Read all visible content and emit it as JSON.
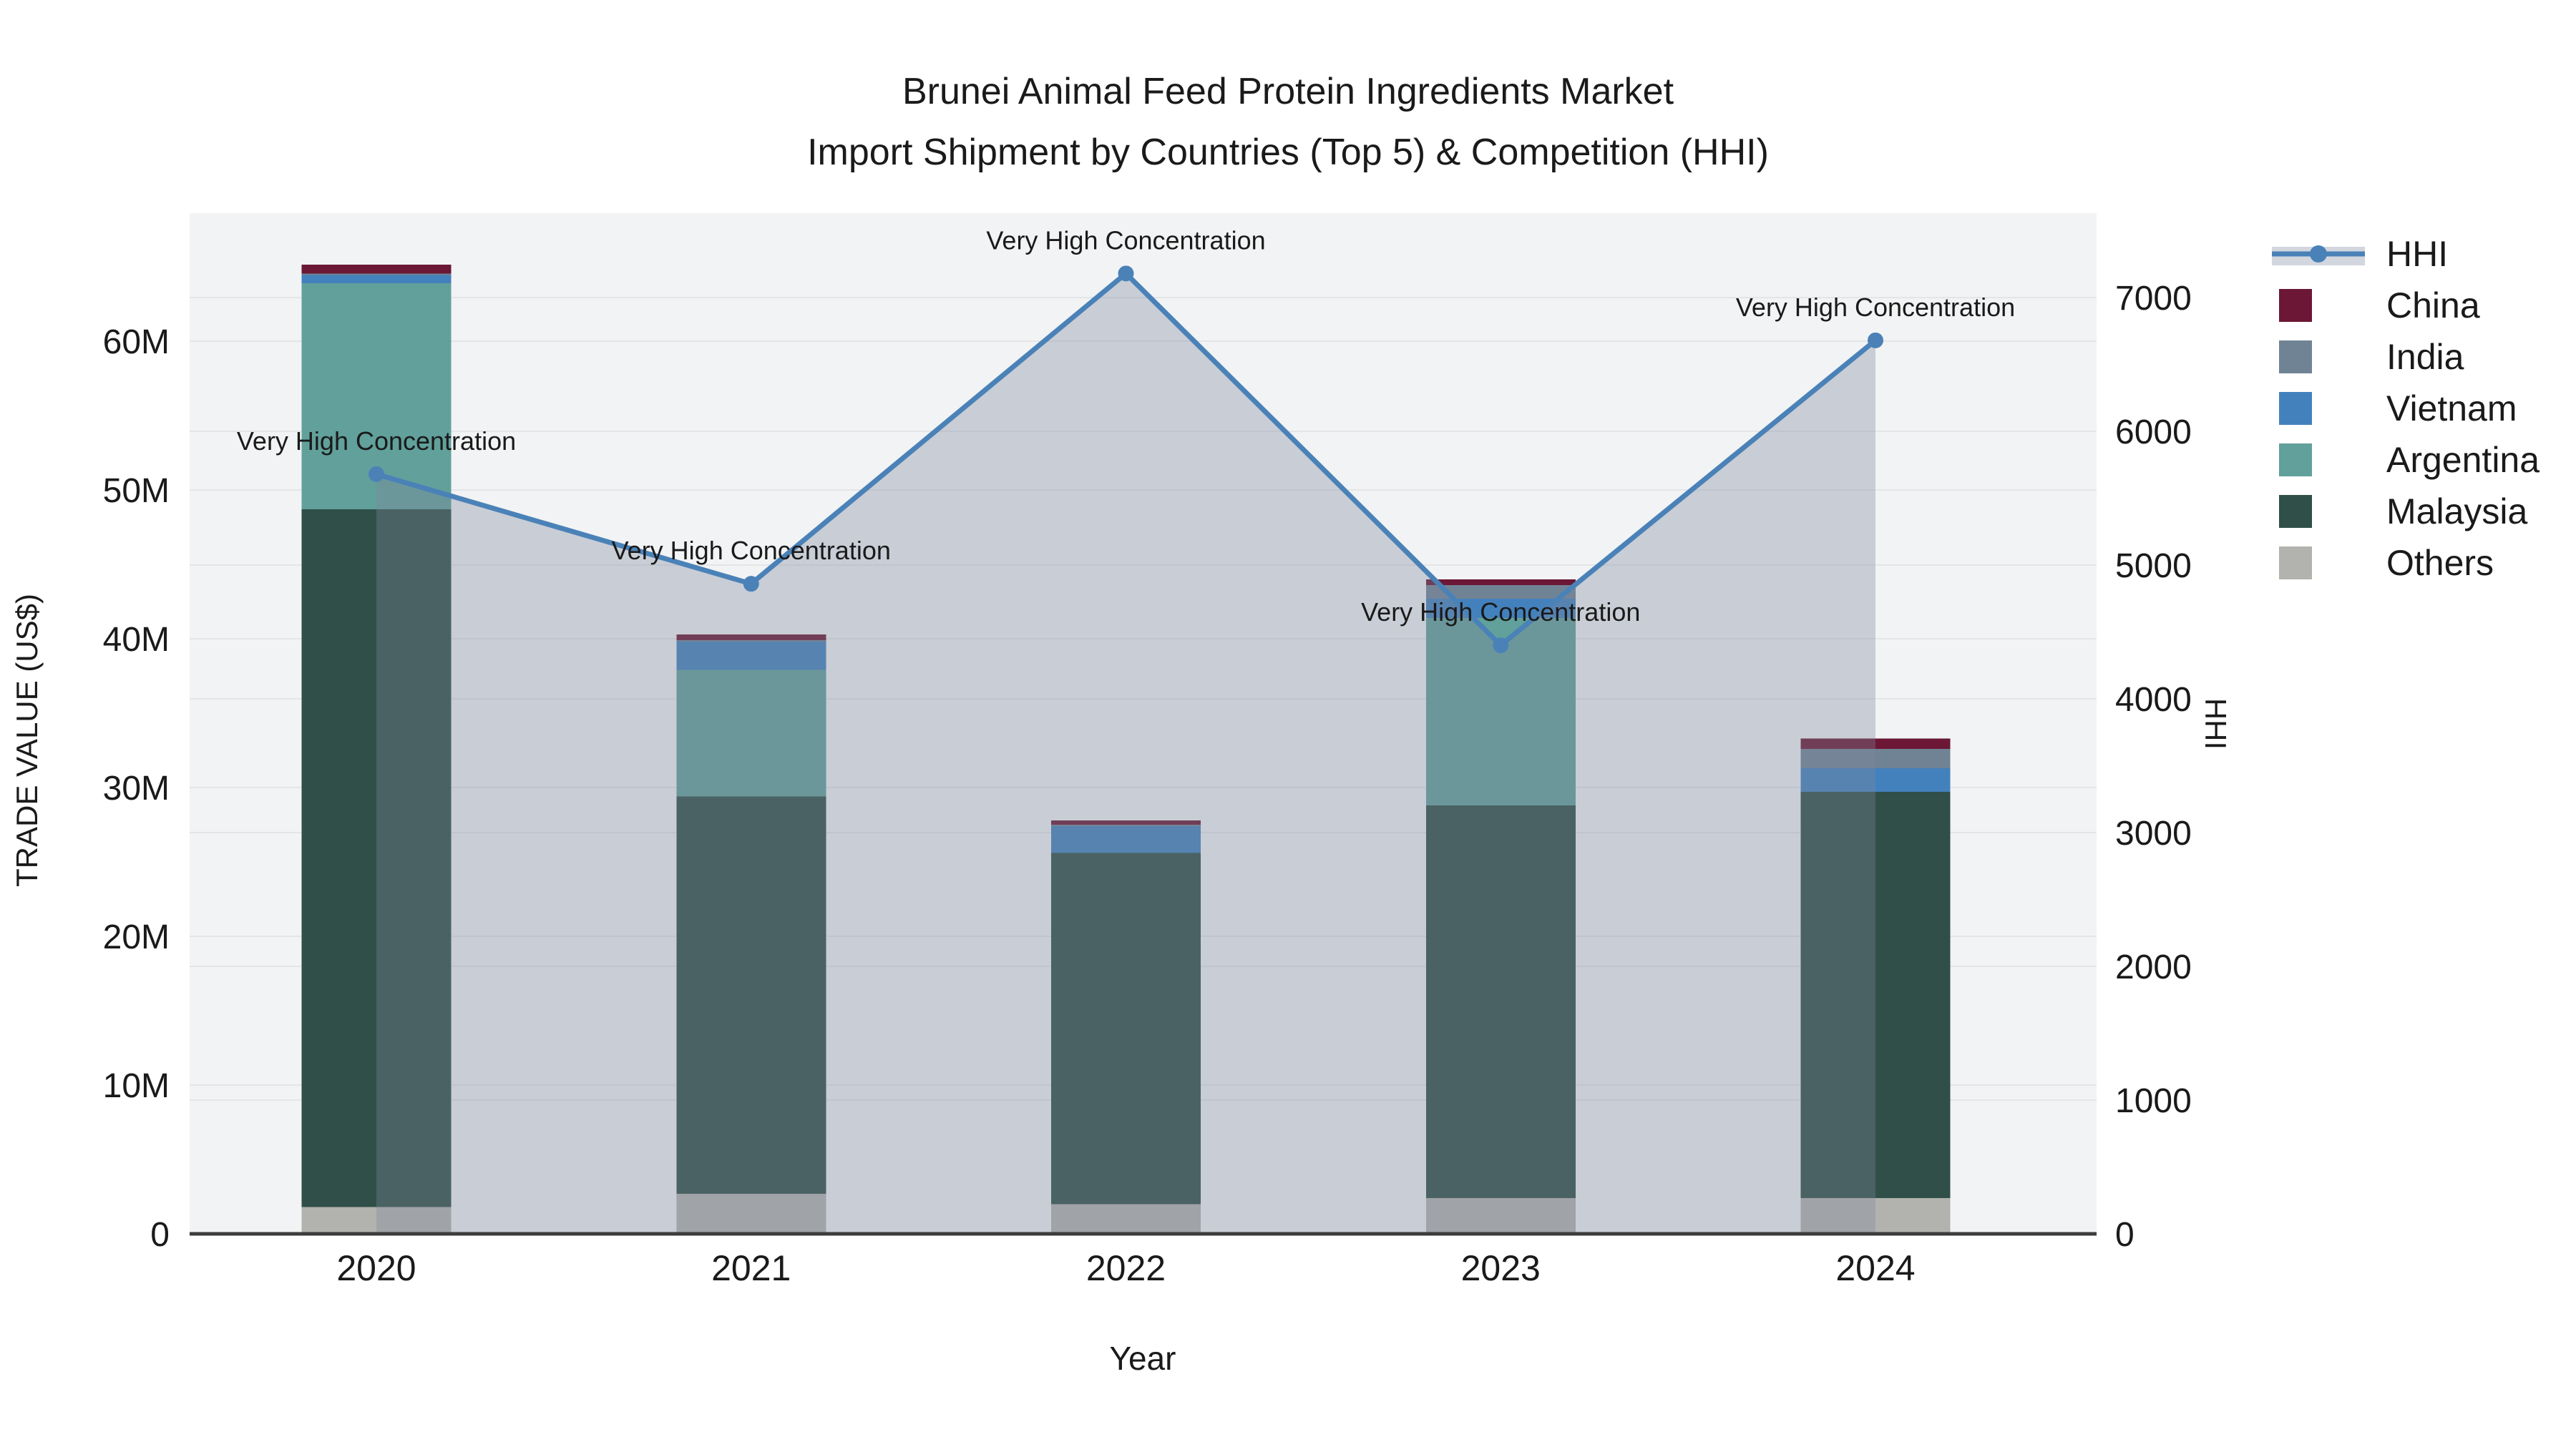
{
  "title": {
    "line1": "Brunei Animal Feed Protein Ingredients Market",
    "line2": "Import Shipment by Countries (Top 5) & Competition (HHI)"
  },
  "axes": {
    "left": {
      "title": "TRADE VALUE (US$)",
      "ticks": [
        "0",
        "10M",
        "20M",
        "30M",
        "40M",
        "50M",
        "60M"
      ]
    },
    "right": {
      "title": "HHI",
      "ticks": [
        "0",
        "1000",
        "2000",
        "3000",
        "4000",
        "5000",
        "6000",
        "7000"
      ]
    },
    "x": {
      "title": "Year",
      "categories": [
        "2020",
        "2021",
        "2022",
        "2023",
        "2024"
      ]
    }
  },
  "legend": {
    "items": [
      {
        "label": "HHI",
        "type": "line",
        "color": "#4a82b8",
        "band": "#d2d6de"
      },
      {
        "label": "China",
        "type": "box",
        "color": "#6b1735"
      },
      {
        "label": "India",
        "type": "box",
        "color": "#708394"
      },
      {
        "label": "Vietnam",
        "type": "box",
        "color": "#4381bd"
      },
      {
        "label": "Argentina",
        "type": "box",
        "color": "#61a09b"
      },
      {
        "label": "Malaysia",
        "type": "box",
        "color": "#2f4f48"
      },
      {
        "label": "Others",
        "type": "box",
        "color": "#b2b3ae"
      }
    ]
  },
  "chart_data": {
    "type": "bar",
    "subtype": "stacked-bars-with-line-area-overlay",
    "categories": [
      "2020",
      "2021",
      "2022",
      "2023",
      "2024"
    ],
    "bar_value_unit": "US$ millions (left axis, M)",
    "series": [
      {
        "name": "Others",
        "values": [
          1.8,
          2.7,
          2.0,
          2.4,
          2.4
        ],
        "color": "#b2b3ae"
      },
      {
        "name": "Malaysia",
        "values": [
          46.9,
          26.7,
          23.6,
          26.4,
          27.3
        ],
        "color": "#2f4f48"
      },
      {
        "name": "Argentina",
        "values": [
          15.2,
          8.5,
          0.0,
          12.6,
          0.0
        ],
        "color": "#61a09b"
      },
      {
        "name": "Vietnam",
        "values": [
          0.55,
          1.9,
          1.8,
          1.3,
          1.6
        ],
        "color": "#4381bd"
      },
      {
        "name": "India",
        "values": [
          0.1,
          0.1,
          0.1,
          0.9,
          1.3
        ],
        "color": "#708394"
      },
      {
        "name": "China",
        "values": [
          0.6,
          0.4,
          0.3,
          0.4,
          0.7
        ],
        "color": "#6b1735"
      }
    ],
    "bar_totals_M": [
      65.15,
      40.3,
      27.8,
      44.0,
      33.3
    ],
    "line": {
      "name": "HHI",
      "values": [
        5680,
        4860,
        7180,
        4400,
        6680
      ],
      "color": "#4a82b8",
      "area_fill": "#7d869a",
      "area_opacity": 0.35,
      "marker": "circle"
    },
    "point_annotations": [
      "Very High Concentration",
      "Very High Concentration",
      "Very High Concentration",
      "Very High Concentration",
      "Very High Concentration"
    ],
    "title": "Brunei Animal Feed Protein Ingredients Market — Import Shipment by Countries (Top 5) & Competition (HHI)",
    "xlabel": "Year",
    "ylabel_left": "TRADE VALUE (US$)",
    "ylabel_right": "HHI",
    "ylim_left": [
      0,
      68.6
    ],
    "ylim_right": [
      0,
      7630
    ],
    "grid": true,
    "legend_position": "right",
    "plot_bg": "#f2f3f4",
    "grid_color": "#e4e5e7",
    "axis_line_color": "#3c3c3c"
  }
}
